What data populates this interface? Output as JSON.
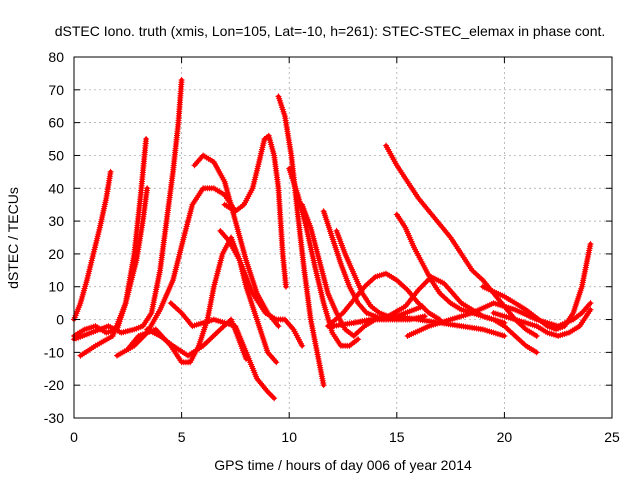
{
  "chart_data": {
    "type": "scatter",
    "title": "dSTEC Iono. truth (xmis, Lon=105, Lat=-10, h=261): STEC-STEC_elemax in phase cont.",
    "xlabel": "GPS time / hours of day 006 of year 2014",
    "ylabel": "dSTEC  / TECUs",
    "xlim": [
      0,
      25
    ],
    "ylim": [
      -30,
      80
    ],
    "xticks": [
      0,
      5,
      10,
      15,
      20,
      25
    ],
    "yticks": [
      -30,
      -20,
      -10,
      0,
      10,
      20,
      30,
      40,
      50,
      60,
      70,
      80
    ],
    "grid": true,
    "marker": "plus",
    "series_color": "#ff0000",
    "series": [
      {
        "x": [
          0.0,
          0.3,
          0.6,
          0.9,
          1.2,
          1.5,
          1.7
        ],
        "y": [
          0,
          5,
          12,
          20,
          28,
          37,
          45
        ]
      },
      {
        "x": [
          0.0,
          0.5,
          1.0,
          1.5,
          2.0,
          2.4,
          2.8,
          3.1,
          3.35
        ],
        "y": [
          -5,
          -3,
          -2,
          -4,
          -3,
          5,
          20,
          38,
          55
        ]
      },
      {
        "x": [
          0.3,
          1.0,
          1.8,
          2.4,
          2.9,
          3.2,
          3.4
        ],
        "y": [
          -11,
          -8,
          -5,
          5,
          18,
          30,
          40
        ]
      },
      {
        "x": [
          0.0,
          0.8,
          1.6,
          2.2,
          2.8,
          3.2,
          3.6,
          4.0,
          4.3,
          4.6,
          4.85,
          5.0
        ],
        "y": [
          -6,
          -4,
          -2,
          -4,
          -3,
          -2,
          2,
          15,
          30,
          45,
          60,
          73
        ]
      },
      {
        "x": [
          2.0,
          2.8,
          3.4,
          4.0,
          4.6,
          5.1,
          5.5,
          6.0,
          6.5,
          7.0,
          7.5
        ],
        "y": [
          -11,
          -8,
          -4,
          3,
          12,
          25,
          35,
          40,
          40,
          38,
          33
        ]
      },
      {
        "x": [
          2.5,
          3.0,
          3.8,
          4.5,
          5.0,
          5.4,
          5.8,
          6.2,
          6.5,
          6.9,
          7.3,
          7.7,
          8.0,
          8.5,
          9.0,
          9.4
        ],
        "y": [
          -9,
          -5,
          -3,
          -8,
          -13,
          -13,
          -8,
          0,
          10,
          20,
          25,
          18,
          10,
          0,
          -10,
          -13
        ]
      },
      {
        "x": [
          3.4,
          4.0,
          4.6,
          5.3,
          6.0,
          6.8,
          7.3,
          7.6,
          8.0
        ],
        "y": [
          -3,
          -5,
          -8,
          -11,
          -8,
          -3,
          0,
          -5,
          -12
        ]
      },
      {
        "x": [
          4.5,
          5.0,
          5.5,
          6.0,
          6.5,
          7.0,
          7.5,
          8.0,
          8.5,
          9.0,
          9.3
        ],
        "y": [
          5,
          2,
          -2,
          -1,
          0,
          -1,
          -2,
          -10,
          -18,
          -22,
          -24
        ]
      },
      {
        "x": [
          5.6,
          6.0,
          6.5,
          7.0,
          7.5,
          8.0,
          8.5,
          9.0,
          9.5
        ],
        "y": [
          47,
          50,
          48,
          42,
          30,
          18,
          8,
          2,
          -2
        ]
      },
      {
        "x": [
          7.0,
          7.5,
          7.9,
          8.3,
          8.6,
          8.85,
          9.05,
          9.3,
          9.5,
          9.7,
          9.85
        ],
        "y": [
          35,
          33,
          35,
          40,
          48,
          55,
          56,
          50,
          40,
          20,
          10
        ]
      },
      {
        "x": [
          6.8,
          7.2,
          7.7,
          8.3,
          8.9,
          9.4,
          9.8,
          10.2,
          10.6
        ],
        "y": [
          27,
          24,
          18,
          8,
          2,
          0,
          0,
          -3,
          -8
        ]
      },
      {
        "x": [
          9.5,
          9.8,
          10.1,
          10.4,
          10.7,
          11.0,
          11.3,
          11.6
        ],
        "y": [
          68,
          62,
          50,
          32,
          15,
          0,
          -10,
          -20
        ]
      },
      {
        "x": [
          10.0,
          10.4,
          10.8,
          11.2,
          11.6,
          12.0,
          12.4,
          12.8,
          13.2
        ],
        "y": [
          46,
          38,
          28,
          16,
          5,
          -4,
          -8,
          -8,
          -6
        ]
      },
      {
        "x": [
          10.6,
          11.0,
          11.4,
          11.8,
          12.2,
          12.6,
          13.0,
          13.5,
          14.0,
          14.5
        ],
        "y": [
          35,
          28,
          18,
          8,
          2,
          -3,
          -5,
          -2,
          0,
          0
        ]
      },
      {
        "x": [
          11.6,
          12.0,
          12.4,
          12.8,
          13.2,
          13.6,
          14.0,
          14.4,
          15.0,
          15.6,
          16.3
        ],
        "y": [
          33,
          25,
          17,
          10,
          5,
          2,
          1,
          0,
          0,
          0,
          1
        ]
      },
      {
        "x": [
          12.2,
          12.6,
          13.0,
          13.4,
          13.8,
          14.2,
          14.6,
          15.0,
          15.4,
          15.8,
          16.2
        ],
        "y": [
          27,
          20,
          14,
          8,
          4,
          2,
          1,
          1,
          2,
          3,
          4
        ]
      },
      {
        "x": [
          14.5,
          15.0,
          15.5,
          16.0,
          16.5,
          17.0,
          17.5,
          18.0,
          18.5,
          19.0,
          19.5,
          20.0,
          20.5,
          21.0,
          21.5
        ],
        "y": [
          53,
          47,
          42,
          37,
          33,
          29,
          25,
          20,
          15,
          12,
          8,
          4,
          0,
          -3,
          -5
        ]
      },
      {
        "x": [
          15.0,
          15.4,
          15.8,
          16.2,
          16.6,
          17.0,
          17.5,
          18.0,
          18.5,
          19.0,
          19.5,
          20.0,
          20.5,
          21.0,
          21.5
        ],
        "y": [
          32,
          28,
          22,
          17,
          12,
          8,
          5,
          3,
          2,
          1,
          0,
          -2,
          -5,
          -8,
          -10
        ]
      },
      {
        "x": [
          11.8,
          12.5,
          13.0,
          13.5,
          14.0,
          14.5,
          15.0,
          15.5,
          16.0,
          16.5,
          17.0
        ],
        "y": [
          -2,
          2,
          6,
          10,
          13,
          14,
          12,
          9,
          5,
          2,
          0
        ]
      },
      {
        "x": [
          12.0,
          13.0,
          14.0,
          15.0,
          16.0,
          17.0,
          18.0,
          19.0,
          20.0
        ],
        "y": [
          -2,
          -1,
          0,
          1,
          0,
          -1,
          -2,
          -3,
          -5
        ]
      },
      {
        "x": [
          13.0,
          13.8,
          14.6,
          15.4,
          16.0,
          16.6,
          17.2,
          18.0,
          19.0,
          20.0
        ],
        "y": [
          -1,
          0,
          1,
          4,
          9,
          13,
          11,
          5,
          1,
          -1
        ]
      },
      {
        "x": [
          15.5,
          16.5,
          17.5,
          18.5,
          19.5,
          20.5,
          21.5,
          22.5,
          23.2,
          23.6,
          24.0
        ],
        "y": [
          -5,
          -2,
          0,
          2,
          5,
          3,
          0,
          -2,
          0,
          2,
          5
        ]
      },
      {
        "x": [
          19.0,
          20.0,
          21.0,
          21.6,
          22.0,
          22.4,
          22.8,
          23.2,
          23.6,
          24.0
        ],
        "y": [
          10,
          7,
          3,
          0,
          -2,
          -3,
          -2,
          2,
          10,
          23
        ]
      },
      {
        "x": [
          19.5,
          20.5,
          21.5,
          22.0,
          22.5,
          23.0,
          23.5,
          24.0
        ],
        "y": [
          2,
          0,
          -2,
          -4,
          -5,
          -4,
          -2,
          3
        ]
      }
    ]
  }
}
